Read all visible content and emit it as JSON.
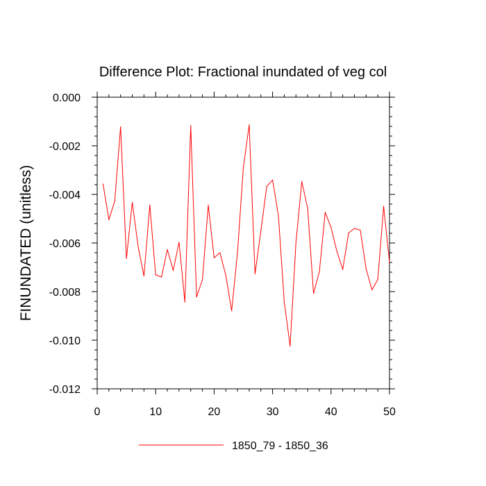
{
  "chart_data": {
    "type": "line",
    "title": "Difference Plot: Fractional inundated of veg col",
    "xlabel": "",
    "ylabel": "FINUNDATED  (unitless)",
    "xlim": [
      0,
      50
    ],
    "ylim": [
      -0.012,
      0.0
    ],
    "x_ticks": [
      0,
      10,
      20,
      30,
      40,
      50
    ],
    "x_tick_labels": [
      "0",
      "10",
      "20",
      "30",
      "40",
      "50"
    ],
    "y_ticks": [
      0.0,
      -0.002,
      -0.004,
      -0.006,
      -0.008,
      -0.01,
      -0.012
    ],
    "y_tick_labels": [
      "0.000",
      "-0.002",
      "-0.004",
      "-0.006",
      "-0.008",
      "-0.010",
      "-0.012"
    ],
    "grid": false,
    "legend_position": "bottom",
    "series": [
      {
        "name": "1850_79 - 1850_36",
        "color": "#ff0000",
        "x": [
          1,
          2,
          3,
          4,
          5,
          6,
          7,
          8,
          9,
          10,
          11,
          12,
          13,
          14,
          15,
          16,
          17,
          18,
          19,
          20,
          21,
          22,
          23,
          24,
          25,
          26,
          27,
          28,
          29,
          30,
          31,
          32,
          33,
          34,
          35,
          36,
          37,
          38,
          39,
          40,
          41,
          42,
          43,
          44,
          45,
          46,
          47,
          48,
          49,
          50
        ],
        "values": [
          -0.00357,
          -0.00504,
          -0.00427,
          -0.00122,
          -0.00664,
          -0.00433,
          -0.00614,
          -0.00736,
          -0.00444,
          -0.00731,
          -0.0074,
          -0.00627,
          -0.00713,
          -0.00597,
          -0.00843,
          -0.00117,
          -0.00822,
          -0.00751,
          -0.00444,
          -0.00661,
          -0.0064,
          -0.00733,
          -0.00879,
          -0.00639,
          -0.00289,
          -0.00114,
          -0.00727,
          -0.0055,
          -0.00367,
          -0.00341,
          -0.00487,
          -0.00843,
          -0.01024,
          -0.00597,
          -0.00347,
          -0.00457,
          -0.00807,
          -0.00719,
          -0.00474,
          -0.00536,
          -0.00634,
          -0.00709,
          -0.00559,
          -0.0054,
          -0.00547,
          -0.00706,
          -0.00793,
          -0.0075,
          -0.00449,
          -0.00679
        ]
      }
    ]
  }
}
